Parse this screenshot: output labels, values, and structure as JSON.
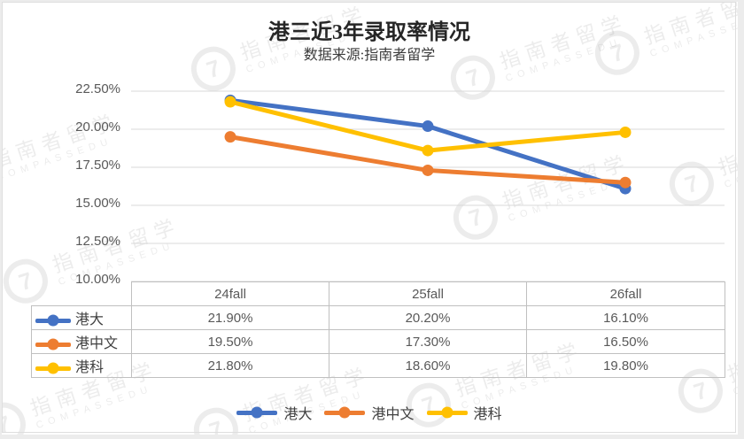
{
  "title": "港三近3年录取率情况",
  "subtitle": "数据来源:指南者留学",
  "watermark": {
    "logo_glyph": "7",
    "line1": "指南者留学",
    "line2": "COMPASSEDU"
  },
  "chart_data": {
    "type": "line",
    "title": "港三近3年录取率情况",
    "subtitle": "数据来源:指南者留学",
    "categories": [
      "24fall",
      "25fall",
      "26fall"
    ],
    "series": [
      {
        "name": "港大",
        "color": "#4472C4",
        "values": [
          21.9,
          20.2,
          16.1
        ],
        "labels": [
          "21.90%",
          "20.20%",
          "16.10%"
        ]
      },
      {
        "name": "港中文",
        "color": "#ED7D31",
        "values": [
          19.5,
          17.3,
          16.5
        ],
        "labels": [
          "19.50%",
          "17.30%",
          "16.50%"
        ]
      },
      {
        "name": "港科",
        "color": "#FFC000",
        "values": [
          21.8,
          18.6,
          19.8
        ],
        "labels": [
          "21.80%",
          "18.60%",
          "19.80%"
        ]
      }
    ],
    "ylim": [
      10,
      22.5
    ],
    "ytick_values": [
      22.5,
      20,
      17.5,
      15,
      12.5,
      10
    ],
    "ytick_labels": [
      "22.50%",
      "20.00%",
      "17.50%",
      "15.00%",
      "12.50%",
      "10.00%"
    ],
    "grid": true,
    "gridline_color": "#d9d9d9",
    "legend_position": "bottom",
    "data_table_shown": true
  }
}
